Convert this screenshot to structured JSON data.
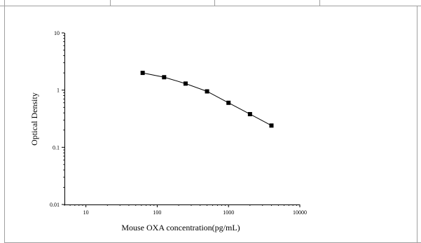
{
  "chart_data": {
    "type": "line",
    "title": "",
    "xlabel": "Mouse OXA concentration(pg/mL)",
    "ylabel": "Optical Density",
    "x_scale": "log",
    "y_scale": "log",
    "xlim": [
      5,
      10000
    ],
    "ylim": [
      0.01,
      10
    ],
    "x_ticks": [
      10,
      100,
      1000,
      10000
    ],
    "x_tick_labels": [
      "10",
      "100",
      "1000",
      "10000"
    ],
    "y_ticks": [
      0.01,
      0.1,
      1,
      10
    ],
    "y_tick_labels": [
      "0.01",
      "0.1",
      "1",
      "10"
    ],
    "grid": false,
    "legend": "none",
    "series": [
      {
        "x": [
          62.5,
          125,
          250,
          500,
          1000,
          2000,
          4000
        ],
        "y": [
          2.0,
          1.68,
          1.3,
          0.95,
          0.6,
          0.38,
          0.24
        ]
      }
    ]
  },
  "colors": {
    "line": "#000000",
    "marker": "#000000",
    "frame": "#000000",
    "border": "#a0a0a0"
  }
}
